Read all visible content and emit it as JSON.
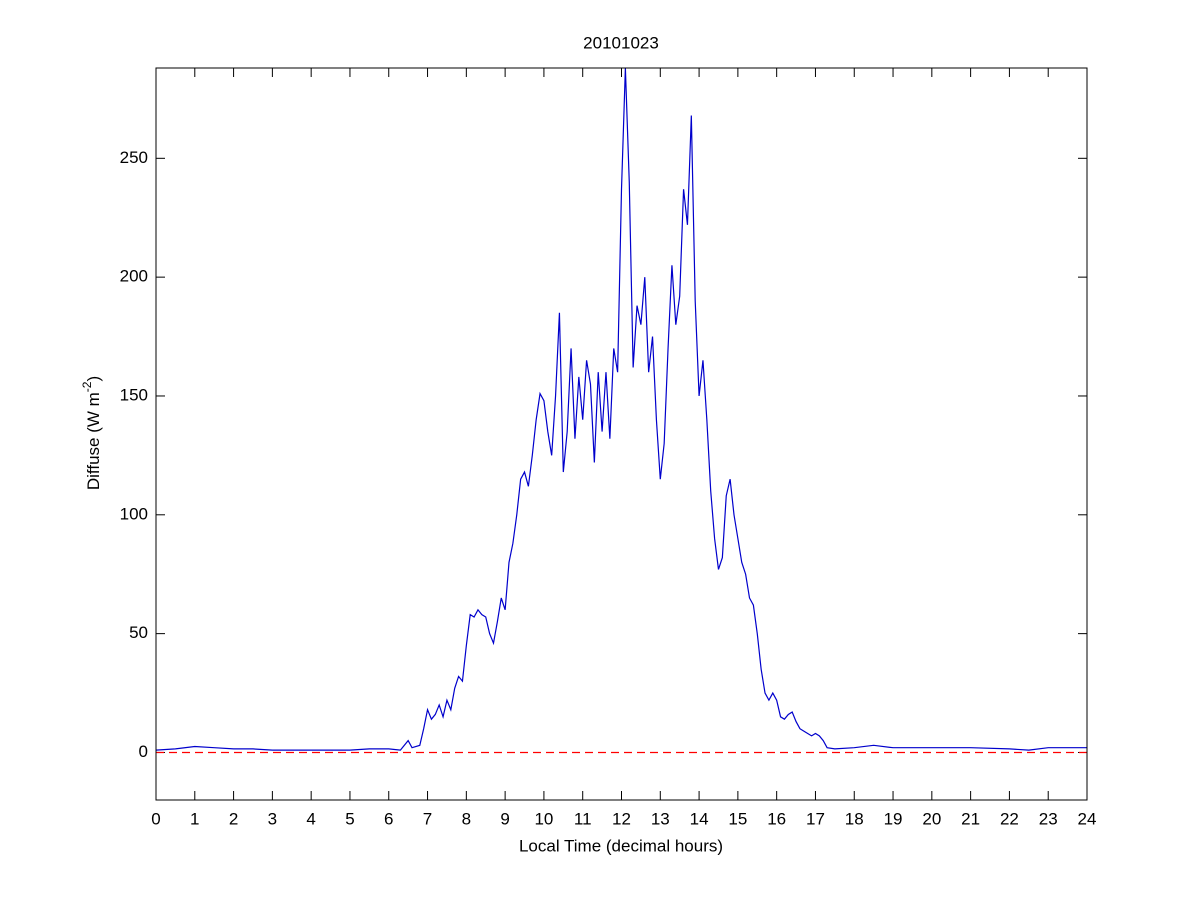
{
  "chart_data": {
    "type": "line",
    "title": "20101023",
    "xlabel": "Local Time (decimal hours)",
    "ylabel": [
      "Diffuse (W m",
      "-2",
      ")"
    ],
    "x": [
      0,
      0.5,
      1,
      1.5,
      2,
      2.5,
      3,
      3.5,
      4,
      4.5,
      5,
      5.5,
      6,
      6.3,
      6.5,
      6.6,
      6.8,
      6.9,
      7.0,
      7.1,
      7.2,
      7.3,
      7.4,
      7.5,
      7.6,
      7.7,
      7.8,
      7.9,
      8.0,
      8.1,
      8.2,
      8.3,
      8.4,
      8.5,
      8.6,
      8.7,
      8.8,
      8.9,
      9.0,
      9.1,
      9.2,
      9.3,
      9.4,
      9.5,
      9.6,
      9.7,
      9.8,
      9.9,
      10.0,
      10.1,
      10.2,
      10.3,
      10.4,
      10.5,
      10.6,
      10.7,
      10.8,
      10.9,
      11.0,
      11.1,
      11.2,
      11.3,
      11.4,
      11.5,
      11.6,
      11.7,
      11.8,
      11.9,
      12.0,
      12.1,
      12.2,
      12.3,
      12.4,
      12.5,
      12.6,
      12.7,
      12.8,
      12.9,
      13.0,
      13.1,
      13.2,
      13.3,
      13.4,
      13.5,
      13.6,
      13.7,
      13.8,
      13.9,
      14.0,
      14.1,
      14.2,
      14.3,
      14.4,
      14.5,
      14.6,
      14.7,
      14.8,
      14.9,
      15.0,
      15.1,
      15.2,
      15.3,
      15.4,
      15.5,
      15.6,
      15.7,
      15.8,
      15.9,
      16.0,
      16.1,
      16.2,
      16.3,
      16.4,
      16.5,
      16.6,
      16.7,
      16.8,
      16.9,
      17.0,
      17.1,
      17.2,
      17.3,
      17.5,
      18,
      18.5,
      19,
      20,
      21,
      22,
      22.5,
      23,
      23.5,
      24
    ],
    "series": [
      {
        "color": "#0000cc",
        "values": [
          1,
          1.5,
          2.5,
          2,
          1.5,
          1.5,
          1,
          1,
          1,
          1,
          1,
          1.5,
          1.5,
          1,
          5,
          2,
          3,
          10,
          18,
          14,
          16,
          20,
          15,
          22,
          18,
          27,
          32,
          30,
          45,
          58,
          57,
          60,
          58,
          57,
          50,
          46,
          55,
          65,
          60,
          80,
          88,
          100,
          115,
          118,
          112,
          125,
          140,
          151,
          148,
          135,
          125,
          150,
          185,
          118,
          135,
          170,
          132,
          158,
          140,
          165,
          155,
          122,
          160,
          135,
          160,
          132,
          170,
          160,
          237,
          288,
          240,
          162,
          188,
          180,
          200,
          160,
          175,
          140,
          115,
          130,
          170,
          205,
          180,
          192,
          237,
          222,
          268,
          190,
          150,
          165,
          140,
          110,
          90,
          77,
          82,
          108,
          115,
          100,
          90,
          80,
          75,
          65,
          62,
          50,
          35,
          25,
          22,
          25,
          22,
          15,
          14,
          16,
          17,
          13,
          10,
          9,
          8,
          7,
          8,
          7,
          5,
          2,
          1.5,
          2,
          3,
          2,
          2,
          2,
          1.5,
          1,
          2,
          2,
          2
        ]
      }
    ],
    "reference_lines": [
      {
        "y": 0,
        "color": "#ff0000"
      }
    ],
    "xlim": [
      0,
      24
    ],
    "xticks": [
      0,
      1,
      2,
      3,
      4,
      5,
      6,
      7,
      8,
      9,
      10,
      11,
      12,
      13,
      14,
      15,
      16,
      17,
      18,
      19,
      20,
      21,
      22,
      23,
      24
    ],
    "ylim": [
      -20,
      288
    ],
    "yticks": [
      0,
      50,
      100,
      150,
      200,
      250
    ]
  }
}
